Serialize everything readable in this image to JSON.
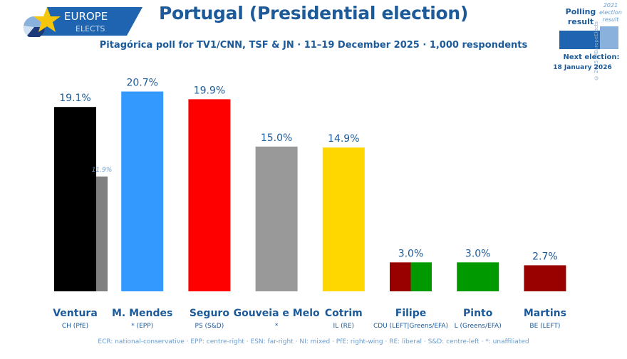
{
  "header": {
    "logo_top": "EUROPE",
    "logo_bottom": "ELECTS",
    "title": "Portugal (Presidential election)",
    "subtitle": "Pitagórica poll for TV1/CNN, TSF & JN · 11–19 December 2025 · 1,000 respondents"
  },
  "legend": {
    "polling_line1": "Polling",
    "polling_line2": "result",
    "prev_line1": "2021",
    "prev_line2": "election",
    "prev_line3": "result",
    "copyright": "© 2025 @EuropeElects",
    "next_election_label": "Next election:",
    "next_election_date": "18 January 2026",
    "poll_color": "#1f64b1",
    "prev_color": "#8ab0dc"
  },
  "footer": "ECR: national-conservative · EPP: centre-right · ESN: far-right · NI: mixed · PfE: right-wing · RE: liberal · S&D: centre-left · *: unaffiliated",
  "chart_data": {
    "type": "bar",
    "title": "Portugal (Presidential election)",
    "xlabel": "",
    "ylabel": "",
    "ylim": [
      0,
      22
    ],
    "grid": false,
    "categories": [
      "Ventura",
      "M. Mendes",
      "Seguro",
      "Gouveia e Melo",
      "Cotrim",
      "Filipe",
      "Pinto",
      "Martins"
    ],
    "parties": [
      "CH (PfE)",
      "* (EPP)",
      "PS (S&D)",
      "*",
      "IL (RE)",
      "CDU (LEFT|Greens/EFA)",
      "L (Greens/EFA)",
      "BE (LEFT)"
    ],
    "series": [
      {
        "name": "Polling result",
        "values": [
          19.1,
          20.7,
          19.9,
          15.0,
          14.9,
          3.0,
          3.0,
          2.7
        ],
        "labels": [
          "19.1%",
          "20.7%",
          "19.9%",
          "15.0%",
          "14.9%",
          "3.0%",
          "3.0%",
          "2.7%"
        ],
        "colors": [
          [
            "#000000"
          ],
          [
            "#3399ff"
          ],
          [
            "#ff0000"
          ],
          [
            "#999999"
          ],
          [
            "#ffd700"
          ],
          [
            "#990000",
            "#009900"
          ],
          [
            "#009900"
          ],
          [
            "#990000"
          ]
        ]
      },
      {
        "name": "2021 election result",
        "values": [
          11.9,
          null,
          null,
          null,
          null,
          null,
          null,
          null
        ],
        "labels": [
          "11.9%",
          null,
          null,
          null,
          null,
          null,
          null,
          null
        ],
        "colors": [
          "#808080"
        ]
      }
    ]
  }
}
